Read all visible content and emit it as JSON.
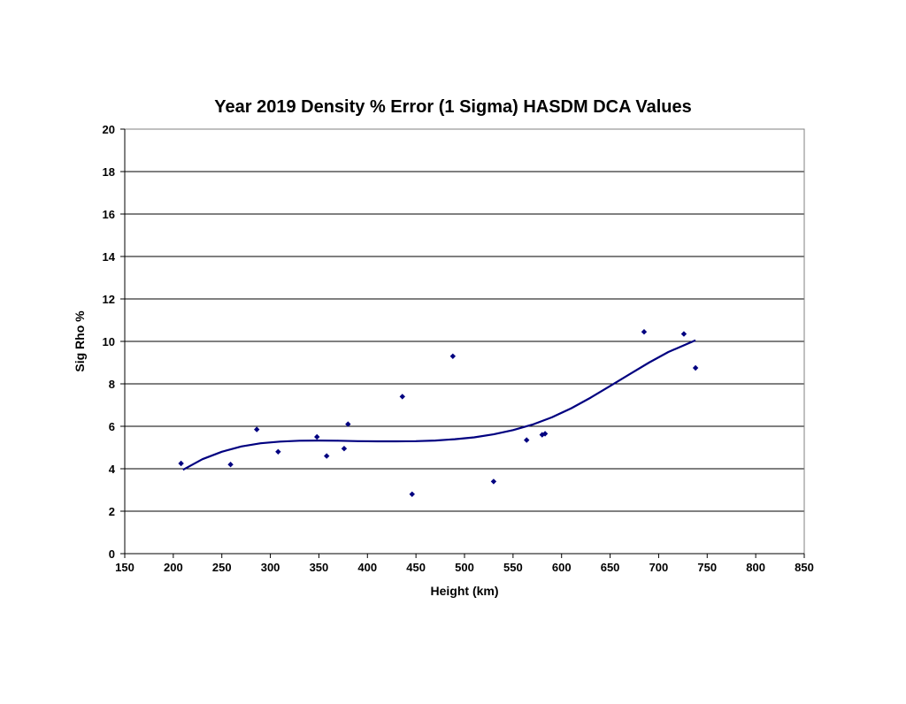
{
  "chart_data": {
    "type": "scatter",
    "title": "Year 2019 Density % Error (1 Sigma) HASDM DCA Values",
    "xlabel": "Height (km)",
    "ylabel": "Sig Rho %",
    "xlim": [
      150,
      850
    ],
    "ylim": [
      0,
      20
    ],
    "x_ticks": [
      150,
      200,
      250,
      300,
      350,
      400,
      450,
      500,
      550,
      600,
      650,
      700,
      750,
      800,
      850
    ],
    "y_ticks": [
      0,
      2,
      4,
      6,
      8,
      10,
      12,
      14,
      16,
      18,
      20
    ],
    "grid": {
      "horizontal": true,
      "vertical": false
    },
    "colors": {
      "series": "#000080",
      "trend": "#000080",
      "grid": "#000000"
    },
    "series": [
      {
        "marker": "diamond",
        "x": [
          208,
          259,
          286,
          308,
          348,
          358,
          376,
          380,
          436,
          446,
          488,
          530,
          564,
          580,
          583,
          685,
          726,
          738
        ],
        "y": [
          4.25,
          4.2,
          5.85,
          4.8,
          5.5,
          4.6,
          4.95,
          6.1,
          7.4,
          2.8,
          9.3,
          3.4,
          5.35,
          5.6,
          5.65,
          10.45,
          10.35,
          8.75
        ]
      }
    ],
    "trendline": {
      "type": "polynomial",
      "x": [
        210,
        230,
        250,
        270,
        290,
        310,
        330,
        350,
        370,
        390,
        410,
        430,
        450,
        470,
        490,
        510,
        530,
        550,
        570,
        590,
        610,
        630,
        650,
        670,
        690,
        710,
        738
      ],
      "y": [
        3.95,
        4.45,
        4.8,
        5.05,
        5.2,
        5.28,
        5.32,
        5.33,
        5.32,
        5.3,
        5.29,
        5.29,
        5.3,
        5.33,
        5.39,
        5.48,
        5.62,
        5.82,
        6.08,
        6.42,
        6.85,
        7.35,
        7.9,
        8.45,
        9.0,
        9.5,
        10.05
      ]
    }
  }
}
